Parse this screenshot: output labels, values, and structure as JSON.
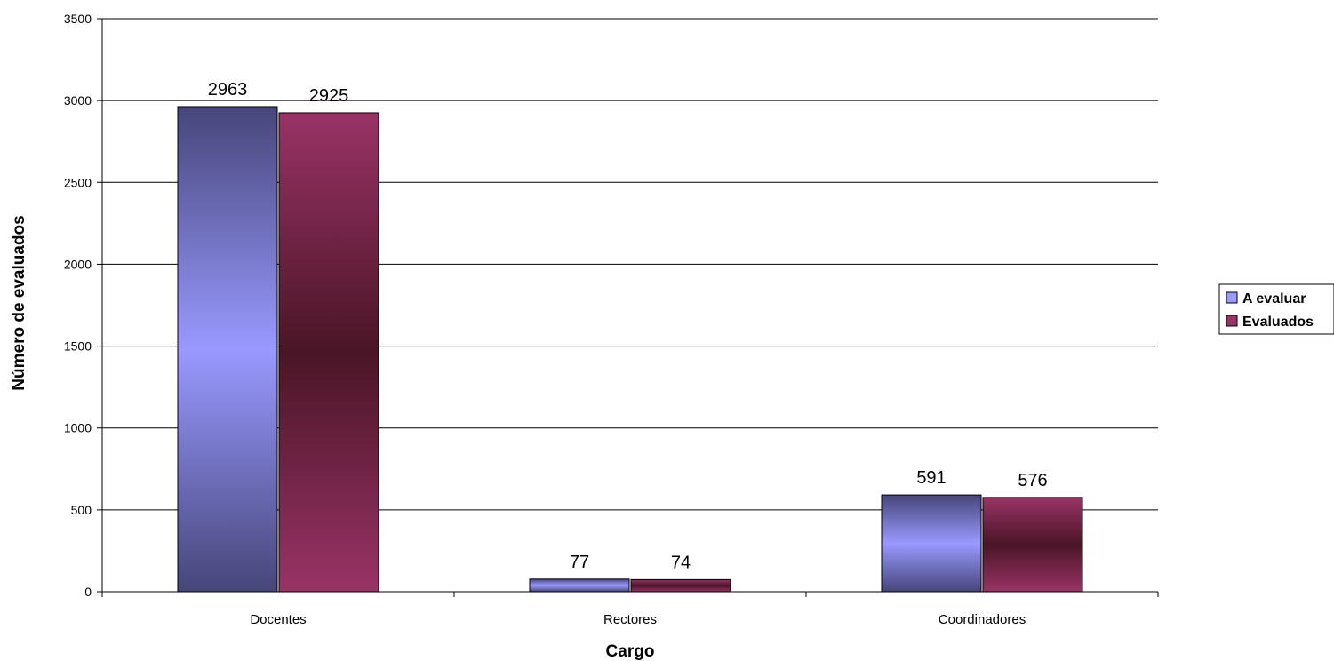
{
  "chart_data": {
    "type": "bar",
    "title": "",
    "xlabel": "Cargo",
    "ylabel": "Número de evaluados",
    "categories": [
      "Docentes",
      "Rectores",
      "Coordinadores"
    ],
    "series": [
      {
        "name": "A evaluar",
        "values": [
          2963,
          77,
          591
        ],
        "color": "#9999ff"
      },
      {
        "name": "Evaluados",
        "values": [
          2925,
          74,
          576
        ],
        "color": "#993366"
      }
    ],
    "ylim": [
      0,
      3500
    ],
    "yticks": [
      0,
      500,
      1000,
      1500,
      2000,
      2500,
      3000,
      3500
    ],
    "grid": true,
    "legend_position": "right"
  }
}
